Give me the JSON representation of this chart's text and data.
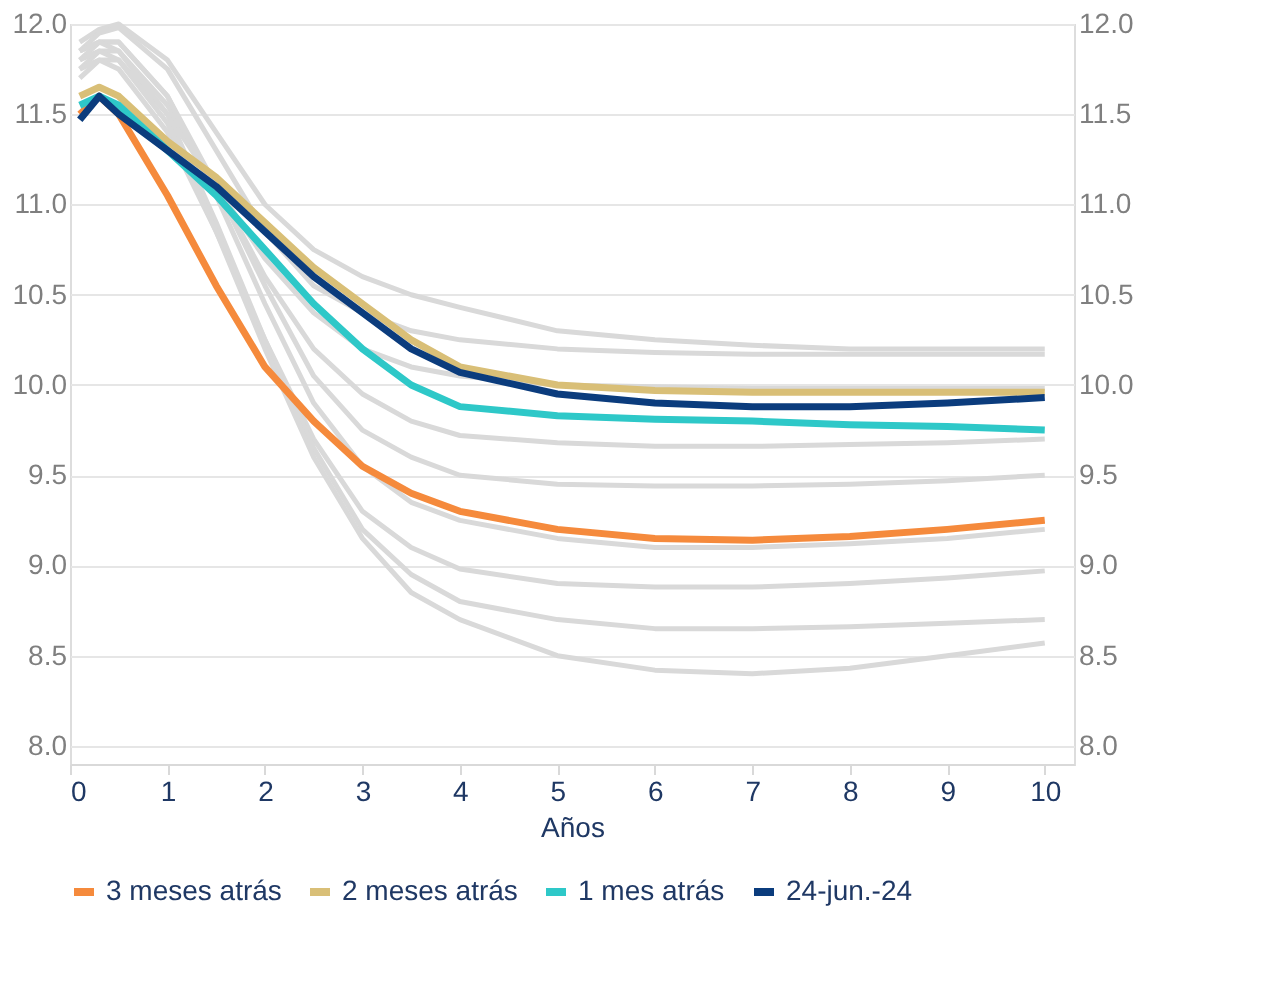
{
  "chart_data": {
    "type": "line",
    "xlabel": "Años",
    "x": [
      0.1,
      0.3,
      0.5,
      1,
      1.5,
      2,
      2.5,
      3,
      3.5,
      4,
      5,
      6,
      7,
      8,
      9,
      10
    ],
    "xlim": [
      0,
      10.3
    ],
    "xticks": [
      0,
      1,
      2,
      3,
      4,
      5,
      6,
      7,
      8,
      9,
      10
    ],
    "ylim": [
      7.9,
      12.0
    ],
    "yticks": [
      {
        "value": 8,
        "label": "8.0"
      },
      8.5,
      {
        "value": 9,
        "label": "9.0"
      },
      9.5,
      {
        "value": 10,
        "label": "10.0"
      },
      10.5,
      {
        "value": 11,
        "label": "11.0"
      },
      11.5,
      {
        "value": 12,
        "label": "12.0"
      }
    ],
    "y2lim": [
      7.9,
      12.0
    ],
    "y2ticks": [
      {
        "value": 8,
        "label": "8.0"
      },
      8.5,
      {
        "value": 9,
        "label": "9.0"
      },
      9.5,
      {
        "value": 10,
        "label": "10.0"
      },
      10.5,
      {
        "value": 11,
        "label": "11.0"
      },
      11.5,
      {
        "value": 12,
        "label": "12.0"
      }
    ],
    "grid": "y",
    "legend": "bottom",
    "line_style": "solid",
    "marker": "none",
    "series": [
      {
        "color": "#d9d9d9",
        "values": [
          11.9,
          11.97,
          12.0,
          11.8,
          11.4,
          11.0,
          10.75,
          10.6,
          10.5,
          10.43,
          10.3,
          10.25,
          10.22,
          10.2,
          10.2,
          10.2
        ]
      },
      {
        "color": "#d9d9d9",
        "values": [
          11.85,
          11.95,
          11.98,
          11.75,
          11.3,
          10.85,
          10.55,
          10.4,
          10.3,
          10.25,
          10.2,
          10.18,
          10.17,
          10.17,
          10.17,
          10.17
        ]
      },
      {
        "color": "#d9d9d9",
        "values": [
          11.7,
          11.8,
          11.8,
          11.5,
          11.1,
          10.7,
          10.4,
          10.2,
          10.1,
          10.05,
          10.0,
          9.99,
          9.98,
          9.98,
          9.98,
          9.98
        ]
      },
      {
        "color": "#d9d9d9",
        "values": [
          11.75,
          11.85,
          11.85,
          11.55,
          11.1,
          10.6,
          10.2,
          9.95,
          9.8,
          9.72,
          9.68,
          9.66,
          9.66,
          9.67,
          9.68,
          9.7
        ]
      },
      {
        "color": "#d9d9d9",
        "values": [
          11.8,
          11.9,
          11.9,
          11.6,
          11.1,
          10.55,
          10.05,
          9.75,
          9.6,
          9.5,
          9.45,
          9.44,
          9.44,
          9.45,
          9.47,
          9.5
        ]
      },
      {
        "color": "#d9d9d9",
        "values": [
          11.85,
          11.9,
          11.9,
          11.6,
          11.05,
          10.45,
          9.9,
          9.55,
          9.35,
          9.25,
          9.15,
          9.1,
          9.1,
          9.12,
          9.15,
          9.2
        ]
      },
      {
        "color": "#d9d9d9",
        "values": [
          11.75,
          11.8,
          11.75,
          11.4,
          10.85,
          10.25,
          9.7,
          9.3,
          9.1,
          8.98,
          8.9,
          8.88,
          8.88,
          8.9,
          8.93,
          8.97
        ]
      },
      {
        "color": "#d9d9d9",
        "values": [
          11.85,
          11.9,
          11.85,
          11.5,
          10.9,
          10.25,
          9.65,
          9.2,
          8.95,
          8.8,
          8.7,
          8.65,
          8.65,
          8.66,
          8.68,
          8.7
        ]
      },
      {
        "color": "#d9d9d9",
        "values": [
          11.8,
          11.85,
          11.8,
          11.45,
          10.85,
          10.2,
          9.6,
          9.15,
          8.85,
          8.7,
          8.5,
          8.42,
          8.4,
          8.43,
          8.5,
          8.57
        ]
      },
      {
        "name": "3 meses atrás",
        "color": "#f58a3c",
        "values": [
          11.5,
          11.6,
          11.5,
          11.05,
          10.55,
          10.1,
          9.8,
          9.55,
          9.4,
          9.3,
          9.2,
          9.15,
          9.14,
          9.16,
          9.2,
          9.25
        ]
      },
      {
        "name": "2 meses atrás",
        "color": "#d9bf77",
        "values": [
          11.6,
          11.65,
          11.6,
          11.35,
          11.15,
          10.9,
          10.65,
          10.45,
          10.25,
          10.1,
          10.0,
          9.97,
          9.96,
          9.96,
          9.96,
          9.96
        ]
      },
      {
        "name": "1 mes atrás",
        "color": "#2ec8c8",
        "values": [
          11.55,
          11.6,
          11.55,
          11.3,
          11.05,
          10.75,
          10.45,
          10.2,
          10.0,
          9.88,
          9.83,
          9.81,
          9.8,
          9.78,
          9.77,
          9.75
        ]
      },
      {
        "name": "24-jun.-24",
        "color": "#0b3c7d",
        "values": [
          11.47,
          11.6,
          11.5,
          11.3,
          11.1,
          10.85,
          10.6,
          10.4,
          10.2,
          10.07,
          9.95,
          9.9,
          9.88,
          9.88,
          9.9,
          9.93
        ]
      }
    ]
  }
}
